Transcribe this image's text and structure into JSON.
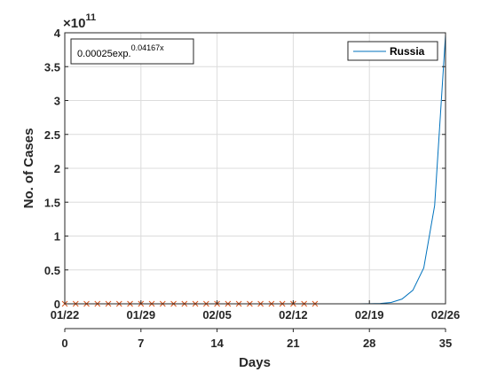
{
  "chart_data": {
    "type": "line",
    "xlabel": "Days",
    "ylabel": "No. of Cases",
    "exponent_label": "×10",
    "exponent_value": "11",
    "xlim": [
      0,
      35
    ],
    "ylim": [
      0,
      4
    ],
    "x_ticks": [
      0,
      7,
      14,
      21,
      28,
      35
    ],
    "date_labels": [
      "01/22",
      "01/29",
      "02/05",
      "02/12",
      "02/19",
      "02/26"
    ],
    "y_ticks": [
      0,
      0.5,
      1,
      1.5,
      2,
      2.5,
      3,
      3.5,
      4
    ],
    "y_tick_labels": [
      "0",
      "0.5",
      "1",
      "1.5",
      "2",
      "2.5",
      "3",
      "3.5",
      "4"
    ],
    "grid": true,
    "legend_position": "top-right",
    "annotation": {
      "text": "0.00025exp.",
      "superscript": "0.04167x"
    },
    "series": [
      {
        "name": "Russia",
        "style": "line",
        "color": "#0072BD",
        "x": [
          0,
          1,
          2,
          3,
          4,
          5,
          6,
          7,
          8,
          9,
          10,
          11,
          12,
          13,
          14,
          15,
          16,
          17,
          18,
          19,
          20,
          21,
          22,
          23,
          24,
          25,
          26,
          27,
          28,
          29,
          30,
          31,
          32,
          33,
          34,
          35
        ],
        "y": [
          0,
          0,
          0,
          0,
          0,
          0,
          0,
          0,
          0,
          0,
          0,
          0,
          0,
          0,
          0,
          0,
          0,
          0,
          0,
          0,
          0,
          0,
          0,
          0,
          0,
          0,
          0,
          0,
          0.001,
          0.005,
          0.02,
          0.07,
          0.2,
          0.53,
          1.45,
          3.97
        ]
      },
      {
        "style": "markers",
        "marker": "x",
        "color": "#D95319",
        "x": [
          0,
          1,
          2,
          3,
          4,
          5,
          6,
          7,
          8,
          9,
          10,
          11,
          12,
          13,
          14,
          15,
          16,
          17,
          18,
          19,
          20,
          21,
          22,
          23
        ],
        "y": [
          0,
          0,
          0,
          0,
          0,
          0,
          0,
          0,
          0,
          0,
          0,
          0,
          0,
          0,
          0,
          0,
          0,
          0,
          0,
          0,
          0,
          0,
          0,
          0
        ]
      }
    ]
  }
}
